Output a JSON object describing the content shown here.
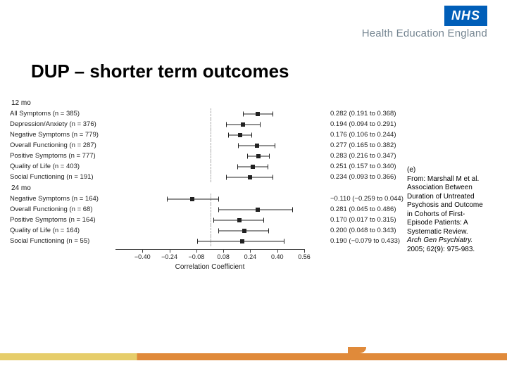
{
  "brand": {
    "nhs": "NHS",
    "hee": "Health Education England"
  },
  "title": "DUP – shorter term outcomes",
  "chart": {
    "type": "forest",
    "xlim": [
      -0.56,
      0.56
    ],
    "zero_line": 0,
    "x_title": "Correlation Coefficient",
    "xticks": [
      -0.4,
      -0.24,
      -0.08,
      0.08,
      0.24,
      0.4,
      0.56
    ],
    "xtick_labels": [
      "−0.40",
      "−0.24",
      "−0.08",
      "0.08",
      "0.24",
      "0.40",
      "0.56"
    ],
    "marker_color": "#222222",
    "line_color": "#222222",
    "grid_color": "#aaaaaa",
    "axis_color": "#444444",
    "text_color": "#222222",
    "label_fontsize": 9.5,
    "tick_fontsize": 9,
    "marker_size": 6,
    "sections": [
      {
        "label": "12 mo",
        "rows": [
          {
            "name": "All Symptoms (n = 385)",
            "est": 0.282,
            "lo": 0.191,
            "hi": 0.368,
            "disp": "0.282 (0.191 to 0.368)"
          },
          {
            "name": "Depression/Anxiety (n = 376)",
            "est": 0.194,
            "lo": 0.094,
            "hi": 0.291,
            "disp": "0.194 (0.094 to 0.291)"
          },
          {
            "name": "Negative Symptoms (n = 779)",
            "est": 0.176,
            "lo": 0.106,
            "hi": 0.244,
            "disp": "0.176 (0.106 to 0.244)"
          },
          {
            "name": "Overall Functioning (n = 287)",
            "est": 0.277,
            "lo": 0.165,
            "hi": 0.382,
            "disp": "0.277 (0.165 to 0.382)"
          },
          {
            "name": "Positive Symptoms (n = 777)",
            "est": 0.283,
            "lo": 0.216,
            "hi": 0.347,
            "disp": "0.283 (0.216 to 0.347)"
          },
          {
            "name": "Quality of Life (n = 403)",
            "est": 0.251,
            "lo": 0.157,
            "hi": 0.34,
            "disp": "0.251 (0.157 to 0.340)"
          },
          {
            "name": "Social Functioning (n = 191)",
            "est": 0.234,
            "lo": 0.093,
            "hi": 0.366,
            "disp": "0.234 (0.093 to 0.366)"
          }
        ]
      },
      {
        "label": "24 mo",
        "rows": [
          {
            "name": "Negative Symptoms (n = 164)",
            "est": -0.11,
            "lo": -0.259,
            "hi": 0.044,
            "disp": "−0.110 (−0.259 to 0.044)"
          },
          {
            "name": "Overall Functioning (n = 68)",
            "est": 0.281,
            "lo": 0.045,
            "hi": 0.486,
            "disp": "0.281 (0.045 to 0.486)"
          },
          {
            "name": "Positive Symptoms (n = 164)",
            "est": 0.17,
            "lo": 0.017,
            "hi": 0.315,
            "disp": "0.170 (0.017 to 0.315)"
          },
          {
            "name": "Quality of Life (n = 164)",
            "est": 0.2,
            "lo": 0.048,
            "hi": 0.343,
            "disp": "0.200 (0.048 to 0.343)"
          },
          {
            "name": "Social Functioning (n = 55)",
            "est": 0.19,
            "lo": -0.079,
            "hi": 0.433,
            "disp": "0.190 (−0.079 to 0.433)"
          }
        ]
      }
    ]
  },
  "citation": {
    "marker": "(e)",
    "lines": [
      "From: Marshall M et al.",
      "Association Between",
      "Duration of Untreated",
      "Psychosis and Outcome",
      "in Cohorts of First-",
      "Episode Patients: A",
      "Systematic Review."
    ],
    "ital": "Arch Gen Psychiatry.",
    "tail": "2005; 62(9): 975-983."
  },
  "footer": {
    "left_color": "#e6cd6a",
    "right_color": "#e08a3a"
  }
}
